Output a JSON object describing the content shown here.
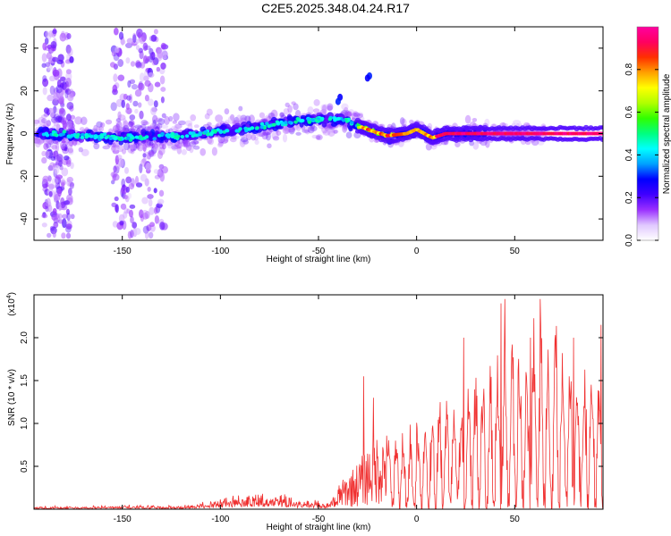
{
  "title": "C2E5.2025.348.04.24.R17",
  "chart_data": [
    {
      "type": "heatmap",
      "xlabel": "Height of straight line (km)",
      "ylabel": "Frequency (Hz)",
      "xlim": [
        -195,
        95
      ],
      "ylim": [
        -50,
        50
      ],
      "x_ticks": [
        -150,
        -100,
        -50,
        0,
        50
      ],
      "y_ticks": [
        -40,
        -20,
        0,
        20,
        40
      ],
      "colorbar": {
        "label": "Normalized spectral amplitude",
        "range": [
          0,
          1
        ],
        "ticks": [
          "0.0",
          "0.2",
          "0.4",
          "0.6",
          "0.8"
        ],
        "tick_values": [
          0.0,
          0.2,
          0.4,
          0.6,
          0.8
        ],
        "colors": [
          "#ffffff",
          "#e0c8ff",
          "#9a30ff",
          "#4000ff",
          "#0000ff",
          "#00a0ff",
          "#00ffff",
          "#00ff80",
          "#30ff00",
          "#b0ff00",
          "#ffff00",
          "#ffa000",
          "#ff3000",
          "#ff0060",
          "#ff00a0"
        ]
      },
      "ridge": [
        {
          "x": -190,
          "y": 0
        },
        {
          "x": -150,
          "y": -2
        },
        {
          "x": -120,
          "y": -1
        },
        {
          "x": -100,
          "y": 1
        },
        {
          "x": -80,
          "y": 3
        },
        {
          "x": -60,
          "y": 6
        },
        {
          "x": -45,
          "y": 7
        },
        {
          "x": -35,
          "y": 6
        },
        {
          "x": -28,
          "y": 3
        },
        {
          "x": -22,
          "y": 1
        },
        {
          "x": -15,
          "y": -1
        },
        {
          "x": -5,
          "y": 0
        },
        {
          "x": 0,
          "y": 2
        },
        {
          "x": 8,
          "y": -2
        },
        {
          "x": 15,
          "y": 0
        },
        {
          "x": 95,
          "y": 0
        }
      ]
    },
    {
      "type": "line",
      "xlabel": "Height of straight line (km)",
      "ylabel": "SNR (10 * v/v)",
      "multiplier": "(x10^4)",
      "xlim": [
        -195,
        95
      ],
      "ylim": [
        0,
        2.5
      ],
      "x_ticks": [
        -150,
        -100,
        -50,
        0,
        50
      ],
      "y_ticks": [
        0.5,
        1.0,
        1.5,
        2.0
      ],
      "y_tick_labels": [
        "0.5",
        "1.0",
        "1.5",
        "2.0"
      ],
      "line_color": "#f03030",
      "envelope": [
        {
          "x": -195,
          "y": 0.04
        },
        {
          "x": -150,
          "y": 0.06
        },
        {
          "x": -120,
          "y": 0.05
        },
        {
          "x": -110,
          "y": 0.12
        },
        {
          "x": -80,
          "y": 0.25
        },
        {
          "x": -60,
          "y": 0.18
        },
        {
          "x": -45,
          "y": 0.1
        },
        {
          "x": -40,
          "y": 0.28
        },
        {
          "x": -30,
          "y": 0.55
        },
        {
          "x": -20,
          "y": 0.9
        },
        {
          "x": -10,
          "y": 0.9
        },
        {
          "x": 0,
          "y": 1.0
        },
        {
          "x": 20,
          "y": 1.3
        },
        {
          "x": 40,
          "y": 1.7
        },
        {
          "x": 55,
          "y": 2.0
        },
        {
          "x": 65,
          "y": 2.2
        },
        {
          "x": 80,
          "y": 1.7
        },
        {
          "x": 95,
          "y": 1.7
        }
      ],
      "peaks": [
        {
          "x": -27,
          "y": 1.55
        },
        {
          "x": -22,
          "y": 1.3
        },
        {
          "x": 24,
          "y": 2.0
        },
        {
          "x": 43,
          "y": 2.4
        },
        {
          "x": 45,
          "y": 2.45
        },
        {
          "x": 58,
          "y": 2.0
        },
        {
          "x": 63,
          "y": 2.45
        },
        {
          "x": 80,
          "y": 2.0
        },
        {
          "x": 94,
          "y": 2.15
        }
      ]
    }
  ]
}
